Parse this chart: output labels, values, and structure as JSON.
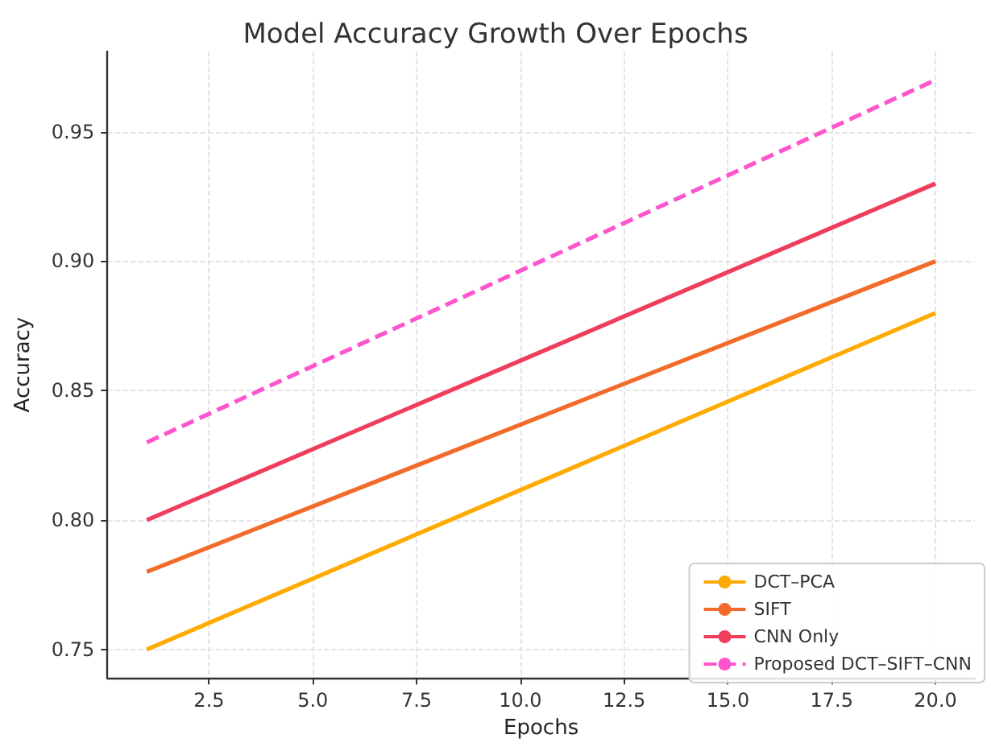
{
  "chart_data": {
    "type": "line",
    "title": "Model Accuracy Growth Over Epochs",
    "xlabel": "Epochs",
    "ylabel": "Accuracy",
    "x": [
      1,
      20
    ],
    "series": [
      {
        "name": "DCT–PCA",
        "color": "#ffaa00",
        "values": [
          0.75,
          0.88
        ]
      },
      {
        "name": "SIFT",
        "color": "#f26b2a",
        "values": [
          0.78,
          0.9
        ]
      },
      {
        "name": "CNN Only",
        "color": "#ef3d5c",
        "values": [
          0.8,
          0.93
        ]
      },
      {
        "name": "Proposed DCT–SIFT–CNN",
        "color": "#ff55cc",
        "values": [
          0.83,
          0.97
        ],
        "line_style": "dashed"
      }
    ],
    "xlim": [
      0.05,
      20.95
    ],
    "xticks": [
      2.5,
      {
        "value": 5,
        "label": "5.0"
      },
      7.5,
      {
        "value": 10,
        "label": "10.0"
      },
      12.5,
      {
        "value": 15,
        "label": "15.0"
      },
      17.5,
      {
        "value": 20,
        "label": "20.0"
      }
    ],
    "ylim": [
      0.739,
      0.981
    ],
    "yticks": [
      0.75,
      {
        "value": 0.8,
        "label": "0.80"
      },
      0.85,
      {
        "value": 0.9,
        "label": "0.90"
      },
      0.95
    ],
    "grid": true,
    "legend": "bottom right",
    "marker": "none",
    "line_style": "solid"
  }
}
